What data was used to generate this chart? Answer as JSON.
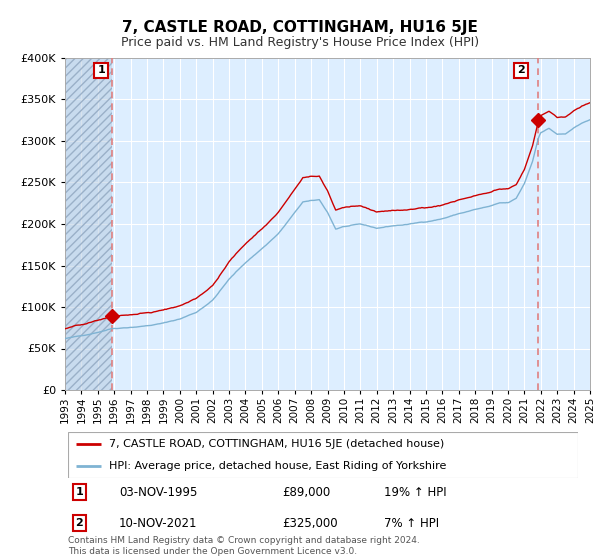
{
  "title": "7, CASTLE ROAD, COTTINGHAM, HU16 5JE",
  "subtitle": "Price paid vs. HM Land Registry's House Price Index (HPI)",
  "legend_line1": "7, CASTLE ROAD, COTTINGHAM, HU16 5JE (detached house)",
  "legend_line2": "HPI: Average price, detached house, East Riding of Yorkshire",
  "annotation1_date": "03-NOV-1995",
  "annotation1_price": "£89,000",
  "annotation1_hpi": "19% ↑ HPI",
  "annotation2_date": "10-NOV-2021",
  "annotation2_price": "£325,000",
  "annotation2_hpi": "7% ↑ HPI",
  "footnote": "Contains HM Land Registry data © Crown copyright and database right 2024.\nThis data is licensed under the Open Government Licence v3.0.",
  "sale1_year": 1995.84,
  "sale1_value": 89000,
  "sale2_year": 2021.86,
  "sale2_value": 325000,
  "hpi_sale1_value": 74800,
  "hpi_sale2_value": 304000,
  "ymax": 400000,
  "ymin": 0,
  "xmin": 1993,
  "xmax": 2025,
  "property_color": "#cc0000",
  "hpi_color": "#7fb3d3",
  "vline_color": "#e08080",
  "background_color": "#ddeeff",
  "hatch_color": "#b8cce0",
  "grid_color": "#ffffff",
  "label_box_edge": "#cc0000"
}
